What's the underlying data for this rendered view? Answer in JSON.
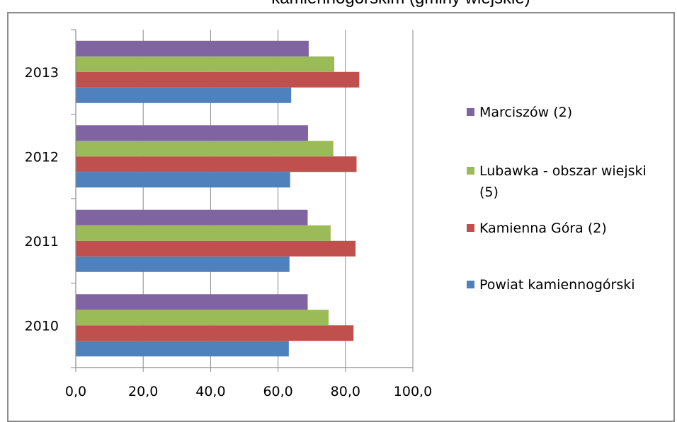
{
  "chart_data": {
    "type": "bar",
    "orientation": "horizontal",
    "title": "kamiennogórskim (gminy wiejskie)",
    "categories": [
      "2010",
      "2011",
      "2012",
      "2013"
    ],
    "series": [
      {
        "name": "Powiat kamiennogórski",
        "color": "#4f81bd",
        "values": [
          63.2,
          63.4,
          63.6,
          63.9
        ]
      },
      {
        "name": "Kamienna Góra (2)",
        "color": "#c0504d",
        "values": [
          82.4,
          83.0,
          83.3,
          84.1
        ]
      },
      {
        "name": "Lubawka - obszar wiejski (5)",
        "color": "#9bbb59",
        "values": [
          75.0,
          75.6,
          76.4,
          76.7
        ]
      },
      {
        "name": "Marciszów (2)",
        "color": "#8064a2",
        "values": [
          68.8,
          68.8,
          68.9,
          69.1
        ]
      }
    ],
    "xlim": [
      0,
      100
    ],
    "xticks": [
      "0,0",
      "20,0",
      "40,0",
      "60,0",
      "80,0",
      "100,0"
    ],
    "grid": "vertical",
    "legend": "right",
    "legend_order": [
      "Marciszów (2)",
      "Lubawka - obszar wiejski (5)",
      "Kamienna Góra (2)",
      "Powiat kamiennogórski"
    ]
  }
}
